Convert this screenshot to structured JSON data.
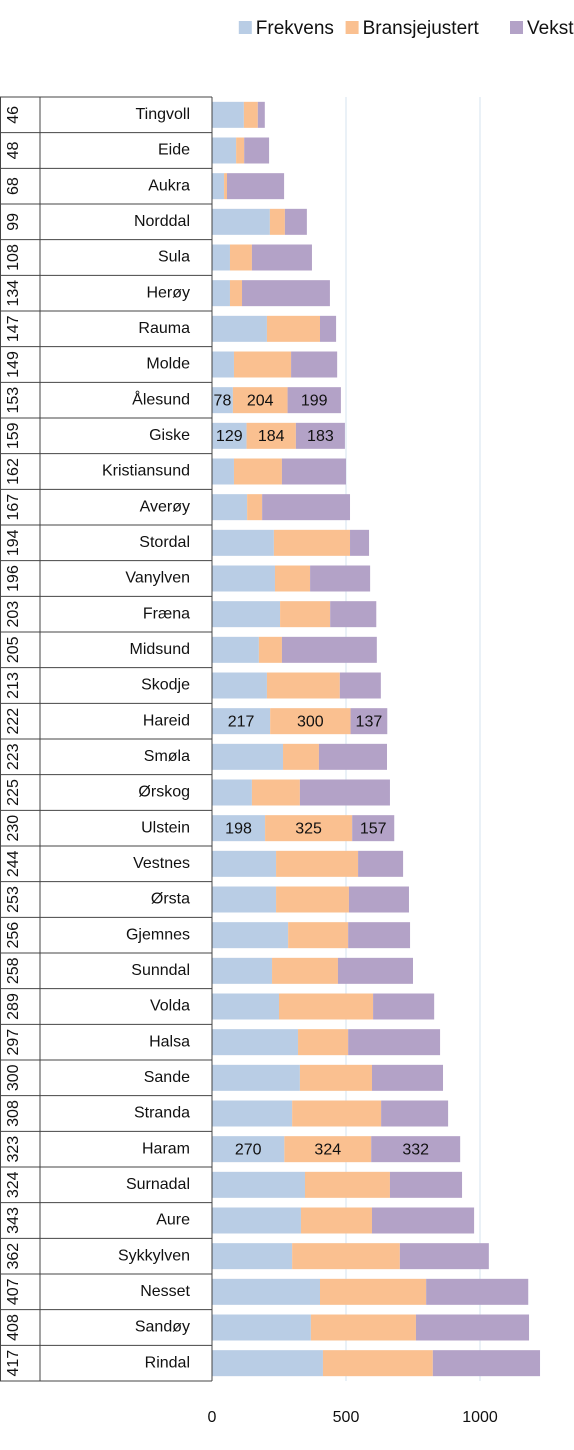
{
  "chart_data": {
    "type": "stacked_barh",
    "categories": [
      "Tingvoll",
      "Eide",
      "Aukra",
      "Norddal",
      "Sula",
      "Herøy",
      "Rauma",
      "Molde",
      "Ålesund",
      "Giske",
      "Kristiansund",
      "Averøy",
      "Stordal",
      "Vanylven",
      "Fræna",
      "Midsund",
      "Skodje",
      "Hareid",
      "Smøla",
      "Ørskog",
      "Ulstein",
      "Vestnes",
      "Ørsta",
      "Gjemnes",
      "Sunndal",
      "Volda",
      "Halsa",
      "Sande",
      "Stranda",
      "Haram",
      "Surnadal",
      "Aure",
      "Sykkylven",
      "Nesset",
      "Sandøy",
      "Rindal"
    ],
    "row_labels": [
      46,
      48,
      68,
      99,
      108,
      134,
      147,
      149,
      153,
      159,
      162,
      167,
      194,
      196,
      203,
      205,
      213,
      222,
      223,
      225,
      230,
      244,
      253,
      256,
      258,
      289,
      297,
      300,
      308,
      323,
      324,
      343,
      362,
      407,
      408,
      417
    ],
    "series": [
      {
        "name": "Frekvens",
        "color": "#b9cde5",
        "values": [
          119,
          90,
          45,
          216,
          67,
          67,
          205,
          82,
          78,
          129,
          82,
          131,
          231,
          235,
          254,
          175,
          205,
          217,
          265,
          149,
          198,
          239,
          239,
          284,
          224,
          250,
          321,
          328,
          299,
          270,
          347,
          332,
          299,
          403,
          369,
          414
        ],
        "value_labels": [
          null,
          null,
          null,
          null,
          null,
          null,
          null,
          null,
          "78",
          "129",
          null,
          null,
          null,
          null,
          null,
          null,
          null,
          "217",
          null,
          null,
          "198",
          null,
          null,
          null,
          null,
          null,
          null,
          null,
          null,
          "270",
          null,
          null,
          null,
          null,
          null,
          null
        ]
      },
      {
        "name": "Bransjejustert",
        "color": "#fac090",
        "values": [
          52,
          30,
          11,
          56,
          82,
          45,
          198,
          213,
          204,
          184,
          179,
          56,
          284,
          131,
          187,
          86,
          272,
          300,
          134,
          179,
          325,
          306,
          272,
          224,
          246,
          351,
          187,
          269,
          332,
          324,
          317,
          265,
          402,
          396,
          392,
          410
        ],
        "value_labels": [
          null,
          null,
          null,
          null,
          null,
          null,
          null,
          null,
          "204",
          "184",
          null,
          null,
          null,
          null,
          null,
          null,
          null,
          "300",
          null,
          null,
          "325",
          null,
          null,
          null,
          null,
          null,
          null,
          null,
          null,
          "324",
          null,
          null,
          null,
          null,
          null,
          null
        ]
      },
      {
        "name": "Vekst",
        "color": "#b3a2c7",
        "values": [
          26,
          93,
          213,
          82,
          224,
          328,
          60,
          172,
          199,
          183,
          239,
          328,
          71,
          224,
          172,
          354,
          153,
          137,
          254,
          336,
          157,
          168,
          224,
          231,
          280,
          228,
          343,
          265,
          250,
          332,
          269,
          381,
          332,
          381,
          422,
          400
        ],
        "value_labels": [
          null,
          null,
          null,
          null,
          null,
          null,
          null,
          null,
          "199",
          "183",
          null,
          null,
          null,
          null,
          null,
          null,
          null,
          "137",
          null,
          null,
          "157",
          null,
          null,
          null,
          null,
          null,
          null,
          null,
          null,
          "332",
          null,
          null,
          null,
          null,
          null,
          null
        ]
      }
    ],
    "xlim": [
      0,
      1250
    ],
    "xticks": [
      0,
      500,
      1000
    ],
    "grid": true,
    "legend": "top"
  }
}
